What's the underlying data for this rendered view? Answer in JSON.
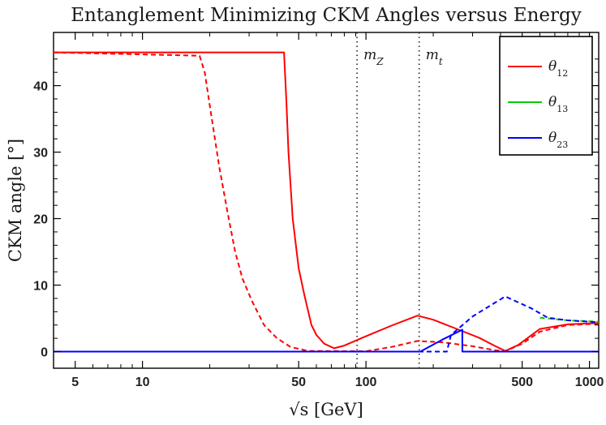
{
  "chart_data": {
    "type": "line",
    "title": "Entanglement Minimizing CKM Angles versus Energy",
    "xlabel": "√s [GeV]",
    "ylabel": "CKM angle [°]",
    "x_scale": "log",
    "xlim": [
      4,
      1100
    ],
    "ylim": [
      -2.5,
      48
    ],
    "x_ticks": [
      5,
      10,
      50,
      100,
      500,
      1000
    ],
    "x_tick_labels": [
      "5",
      "10",
      "50",
      "100",
      "500",
      "1000"
    ],
    "y_ticks": [
      0,
      10,
      20,
      30,
      40
    ],
    "y_tick_labels": [
      "0",
      "10",
      "20",
      "30",
      "40"
    ],
    "grid": false,
    "legend_position": "top-right",
    "reference_lines": [
      {
        "label": "m_Z",
        "x": 91.2
      },
      {
        "label": "m_t",
        "x": 173
      }
    ],
    "series": [
      {
        "name": "θ12",
        "color": "#ff0000",
        "dash": "solid",
        "points": [
          [
            4,
            45
          ],
          [
            43,
            45
          ],
          [
            44,
            38
          ],
          [
            45,
            30
          ],
          [
            47,
            20
          ],
          [
            50,
            12.5
          ],
          [
            53,
            8.5
          ],
          [
            57,
            4
          ],
          [
            60,
            2.5
          ],
          [
            65,
            1.2
          ],
          [
            72,
            0.5
          ],
          [
            80,
            0.9
          ],
          [
            100,
            2.3
          ],
          [
            130,
            3.9
          ],
          [
            170,
            5.4
          ],
          [
            200,
            4.8
          ],
          [
            260,
            3.3
          ],
          [
            320,
            2.1
          ],
          [
            380,
            0.8
          ],
          [
            420,
            0.1
          ],
          [
            480,
            1.0
          ],
          [
            600,
            3.4
          ],
          [
            800,
            4.1
          ],
          [
            1100,
            4.3
          ]
        ]
      },
      {
        "name": "θ12",
        "color": "#ff0000",
        "dash": "dashed",
        "points": [
          [
            4,
            45
          ],
          [
            18,
            44.5
          ],
          [
            19,
            42
          ],
          [
            20,
            37
          ],
          [
            22,
            28
          ],
          [
            24,
            21
          ],
          [
            26,
            15
          ],
          [
            28,
            11
          ],
          [
            31,
            7.5
          ],
          [
            35,
            4
          ],
          [
            40,
            2
          ],
          [
            46,
            0.7
          ],
          [
            55,
            0.1
          ],
          [
            100,
            0.05
          ],
          [
            130,
            0.7
          ],
          [
            170,
            1.6
          ],
          [
            220,
            1.4
          ],
          [
            300,
            0.8
          ],
          [
            380,
            0.2
          ],
          [
            420,
            0.05
          ],
          [
            500,
            1.2
          ],
          [
            600,
            3.0
          ],
          [
            800,
            4.0
          ],
          [
            1100,
            4.2
          ]
        ]
      },
      {
        "name": "θ13",
        "color": "#00cc00",
        "dash": "dashed",
        "points": [
          [
            600,
            5.1
          ],
          [
            800,
            4.7
          ],
          [
            1100,
            4.5
          ]
        ]
      },
      {
        "name": "θ23",
        "color": "#0000ff",
        "dash": "solid",
        "points": [
          [
            4,
            0
          ],
          [
            175,
            0
          ],
          [
            220,
            1.8
          ],
          [
            270,
            3.3
          ],
          [
            270,
            0
          ],
          [
            1100,
            0
          ]
        ]
      },
      {
        "name": "θ23",
        "color": "#0000ff",
        "dash": "dashed",
        "points": [
          [
            4,
            0
          ],
          [
            230,
            0
          ],
          [
            240,
            2.5
          ],
          [
            300,
            5.3
          ],
          [
            420,
            8.3
          ],
          [
            550,
            6.5
          ],
          [
            650,
            5.1
          ],
          [
            800,
            4.7
          ],
          [
            1100,
            4.4
          ]
        ]
      }
    ],
    "legend": [
      {
        "label": "θ",
        "sub": "12",
        "color": "#ff0000"
      },
      {
        "label": "θ",
        "sub": "13",
        "color": "#00cc00"
      },
      {
        "label": "θ",
        "sub": "23",
        "color": "#0000ff"
      }
    ]
  }
}
